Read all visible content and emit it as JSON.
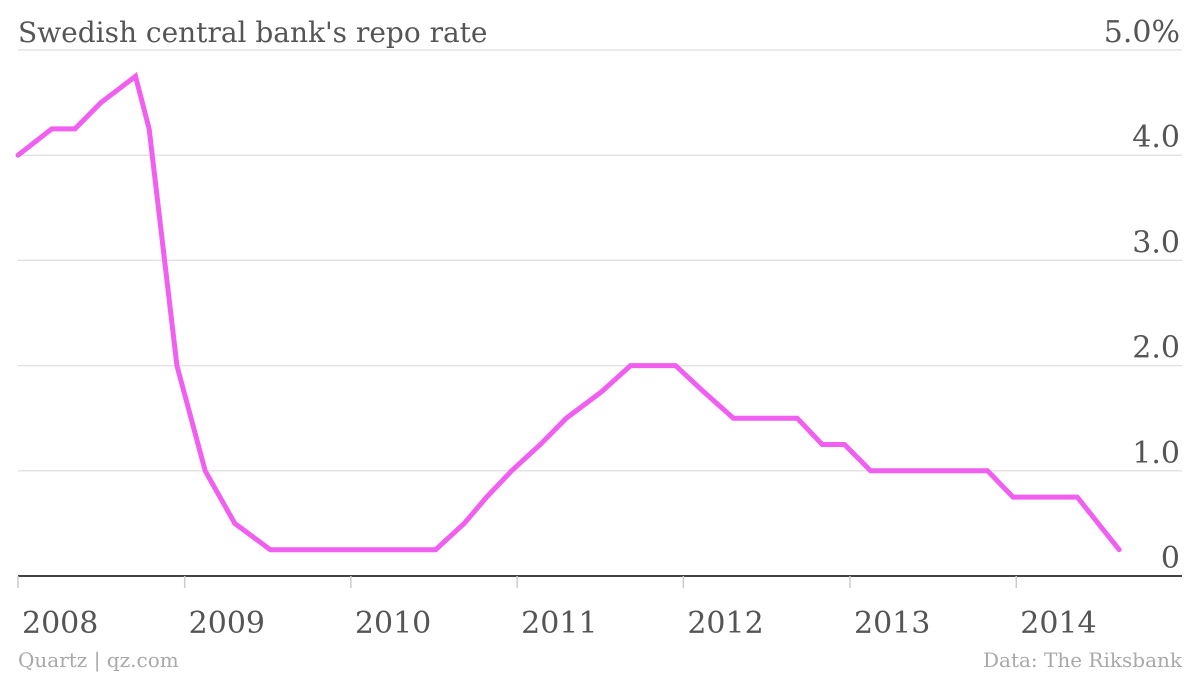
{
  "chart_data": {
    "type": "line",
    "title": "Swedish central bank's repo rate",
    "xlabel": "",
    "ylabel": "",
    "x_ticks": [
      "2008",
      "2009",
      "2010",
      "2011",
      "2012",
      "2013",
      "2014"
    ],
    "y_ticks": [
      {
        "value": 5,
        "label": "5.0%"
      },
      {
        "value": 4,
        "label": "4.0"
      },
      {
        "value": 3,
        "label": "3.0"
      },
      {
        "value": 2,
        "label": "2.0"
      },
      {
        "value": 1,
        "label": "1.0"
      },
      {
        "value": 0,
        "label": "0"
      }
    ],
    "xlim": [
      "2008-01-01",
      "2014-12-31"
    ],
    "ylim": [
      0,
      5
    ],
    "grid": true,
    "series": [
      {
        "color": "#f05ff0",
        "points": [
          {
            "x": "2008-01-01",
            "y": 4.0
          },
          {
            "x": "2008-03-15",
            "y": 4.25
          },
          {
            "x": "2008-05-05",
            "y": 4.25
          },
          {
            "x": "2008-07-01",
            "y": 4.5
          },
          {
            "x": "2008-09-15",
            "y": 4.75
          },
          {
            "x": "2008-10-15",
            "y": 4.25
          },
          {
            "x": "2008-12-15",
            "y": 2.0
          },
          {
            "x": "2009-02-15",
            "y": 1.0
          },
          {
            "x": "2009-04-21",
            "y": 0.5
          },
          {
            "x": "2009-07-08",
            "y": 0.25
          },
          {
            "x": "2010-07-06",
            "y": 0.25
          },
          {
            "x": "2010-09-07",
            "y": 0.5
          },
          {
            "x": "2010-10-26",
            "y": 0.75
          },
          {
            "x": "2010-12-20",
            "y": 1.0
          },
          {
            "x": "2011-02-21",
            "y": 1.25
          },
          {
            "x": "2011-04-19",
            "y": 1.5
          },
          {
            "x": "2011-07-05",
            "y": 1.75
          },
          {
            "x": "2011-09-07",
            "y": 2.0
          },
          {
            "x": "2011-12-15",
            "y": 2.0
          },
          {
            "x": "2012-02-15",
            "y": 1.75
          },
          {
            "x": "2012-04-20",
            "y": 1.5
          },
          {
            "x": "2012-09-07",
            "y": 1.5
          },
          {
            "x": "2012-11-01",
            "y": 1.25
          },
          {
            "x": "2012-12-20",
            "y": 1.25
          },
          {
            "x": "2013-02-15",
            "y": 1.0
          },
          {
            "x": "2013-10-30",
            "y": 1.0
          },
          {
            "x": "2013-12-25",
            "y": 0.75
          },
          {
            "x": "2014-05-15",
            "y": 0.75
          },
          {
            "x": "2014-08-15",
            "y": 0.25
          }
        ]
      }
    ]
  },
  "footer": {
    "source_left": "Quartz | qz.com",
    "source_right": "Data: The Riksbank"
  }
}
